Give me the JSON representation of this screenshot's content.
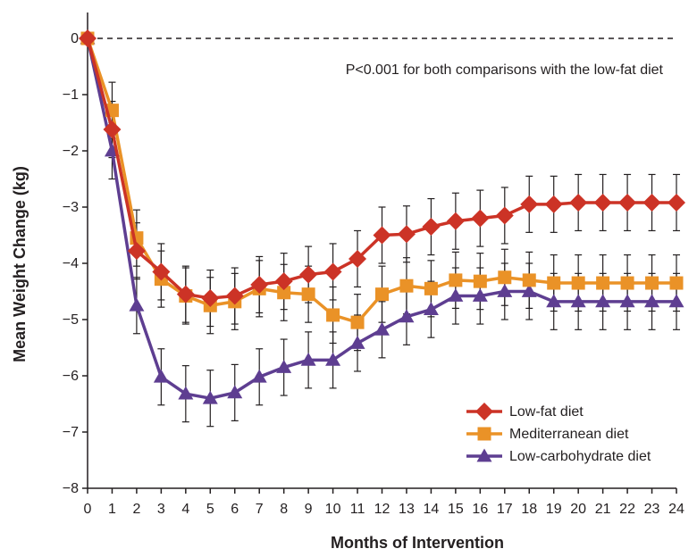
{
  "chart_data": {
    "type": "line",
    "title": "",
    "xlabel": "Months of Intervention",
    "ylabel": "Mean Weight Change (kg)",
    "annotation": "P<0.001 for both comparisons with the low-fat diet",
    "x": [
      0,
      1,
      2,
      3,
      4,
      5,
      6,
      7,
      8,
      9,
      10,
      11,
      12,
      13,
      14,
      15,
      16,
      17,
      18,
      19,
      20,
      21,
      22,
      23,
      24
    ],
    "xlim": [
      0,
      24
    ],
    "ylim": [
      -8,
      0
    ],
    "yticks": [
      0,
      -1,
      -2,
      -3,
      -4,
      -5,
      -6,
      -7,
      -8
    ],
    "ytick_labels": [
      "0",
      "−1",
      "−2",
      "−3",
      "−4",
      "−5",
      "−6",
      "−7",
      "−8"
    ],
    "reference_line": {
      "y": 0,
      "style": "dashed"
    },
    "grid": false,
    "legend_position": "bottom-right",
    "series": [
      {
        "name": "Low-fat diet",
        "color": "#cc3326",
        "marker": "diamond",
        "values": [
          0,
          -1.62,
          -3.78,
          -4.15,
          -4.55,
          -4.62,
          -4.58,
          -4.38,
          -4.32,
          -4.2,
          -4.15,
          -3.92,
          -3.5,
          -3.48,
          -3.35,
          -3.25,
          -3.2,
          -3.15,
          -2.95,
          -2.95,
          -2.92,
          -2.92,
          -2.92,
          -2.92,
          -2.92
        ],
        "error": [
          0,
          0.5,
          0.5,
          0.5,
          0.5,
          0.5,
          0.5,
          0.5,
          0.5,
          0.5,
          0.5,
          0.5,
          0.5,
          0.5,
          0.5,
          0.5,
          0.5,
          0.5,
          0.5,
          0.5,
          0.5,
          0.5,
          0.5,
          0.5,
          0.5
        ]
      },
      {
        "name": "Mediterranean diet",
        "color": "#ea9227",
        "marker": "square",
        "values": [
          0,
          -1.28,
          -3.55,
          -4.28,
          -4.58,
          -4.75,
          -4.68,
          -4.45,
          -4.52,
          -4.55,
          -4.92,
          -5.05,
          -4.55,
          -4.4,
          -4.45,
          -4.3,
          -4.32,
          -4.25,
          -4.3,
          -4.35,
          -4.35,
          -4.35,
          -4.35,
          -4.35,
          -4.35
        ],
        "error": [
          0,
          0.5,
          0.5,
          0.5,
          0.5,
          0.5,
          0.5,
          0.5,
          0.5,
          0.5,
          0.5,
          0.5,
          0.5,
          0.5,
          0.5,
          0.5,
          0.5,
          0.5,
          0.5,
          0.5,
          0.5,
          0.5,
          0.5,
          0.5,
          0.5
        ]
      },
      {
        "name": "Low-carbohydrate diet",
        "color": "#5e3e91",
        "marker": "triangle",
        "values": [
          0,
          -2.0,
          -4.75,
          -6.02,
          -6.32,
          -6.4,
          -6.3,
          -6.02,
          -5.85,
          -5.72,
          -5.72,
          -5.42,
          -5.18,
          -4.95,
          -4.82,
          -4.58,
          -4.58,
          -4.5,
          -4.5,
          -4.68,
          -4.68,
          -4.68,
          -4.68,
          -4.68,
          -4.68
        ],
        "error": [
          0,
          0.5,
          0.5,
          0.5,
          0.5,
          0.5,
          0.5,
          0.5,
          0.5,
          0.5,
          0.5,
          0.5,
          0.5,
          0.5,
          0.5,
          0.5,
          0.5,
          0.5,
          0.5,
          0.5,
          0.5,
          0.5,
          0.5,
          0.5,
          0.5
        ]
      }
    ]
  }
}
